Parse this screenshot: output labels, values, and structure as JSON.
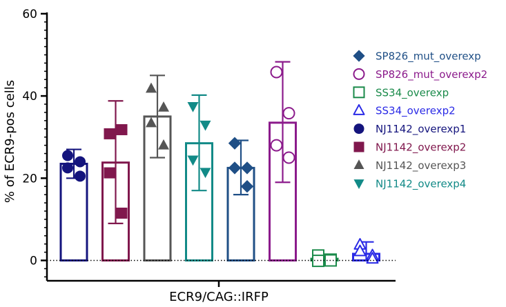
{
  "chart_data": {
    "type": "bar",
    "ylabel": "% of ECR9-pos cells",
    "xlabel": "ECR9/CAG::IRFP",
    "ylim": [
      -5,
      60
    ],
    "yticks": [
      0,
      20,
      40,
      60
    ],
    "minor_step": 2,
    "reference_line": 0,
    "legend_position": "right",
    "series": [
      {
        "name": "NJ1142_overexp1",
        "color": "#14147d",
        "marker": "circle",
        "filled": true,
        "mean": 23.5,
        "err_low": 20.0,
        "err_high": 27.0,
        "points": [
          25.5,
          24,
          22.5,
          20.5
        ]
      },
      {
        "name": "NJ1142_overexp2",
        "color": "#80184d",
        "marker": "square",
        "filled": true,
        "mean": 23.8,
        "err_low": 9.0,
        "err_high": 38.8,
        "points": [
          30.8,
          31.8,
          21.3,
          11.5
        ]
      },
      {
        "name": "NJ1142_overexp3",
        "color": "#555555",
        "marker": "triangle-up",
        "filled": true,
        "mean": 35.0,
        "err_low": 25.0,
        "err_high": 45.0,
        "points": [
          41.8,
          37.2,
          33.4,
          28.0
        ]
      },
      {
        "name": "NJ1142_overexp4",
        "color": "#128a87",
        "marker": "triangle-down",
        "filled": true,
        "mean": 28.5,
        "err_low": 17.0,
        "err_high": 40.2,
        "points": [
          37.5,
          33.0,
          24.5,
          21.5
        ]
      },
      {
        "name": "SP826_mut_overexp",
        "color": "#1f4f86",
        "marker": "diamond",
        "filled": true,
        "mean": 22.5,
        "err_low": 16.0,
        "err_high": 29.2,
        "points": [
          28.5,
          22.5,
          22.5,
          18.0
        ]
      },
      {
        "name": "SP826_mut_overexp2",
        "color": "#8b1a8b",
        "marker": "circle",
        "filled": false,
        "mean": 33.5,
        "err_low": 19.0,
        "err_high": 48.3,
        "points": [
          45.8,
          35.8,
          28.0,
          25.0
        ]
      },
      {
        "name": "SS34_overexp",
        "color": "#1a8a4a",
        "marker": "square",
        "filled": false,
        "mean": 0.4,
        "err_low": -0.6,
        "err_high": 1.4,
        "points": [
          1.2,
          0.2,
          -0.1,
          0.0
        ]
      },
      {
        "name": "SS34_overexp2",
        "color": "#2a2ae6",
        "marker": "triangle-up",
        "filled": false,
        "mean": 1.6,
        "err_low": 0.0,
        "err_high": 4.5,
        "points": [
          3.8,
          1.2,
          2.2,
          0.4
        ]
      }
    ],
    "legend_order": [
      "SP826_mut_overexp",
      "SP826_mut_overexp2",
      "SS34_overexp",
      "SS34_overexp2",
      "NJ1142_overexp1",
      "NJ1142_overexp2",
      "NJ1142_overexp3",
      "NJ1142_overexp4"
    ]
  }
}
